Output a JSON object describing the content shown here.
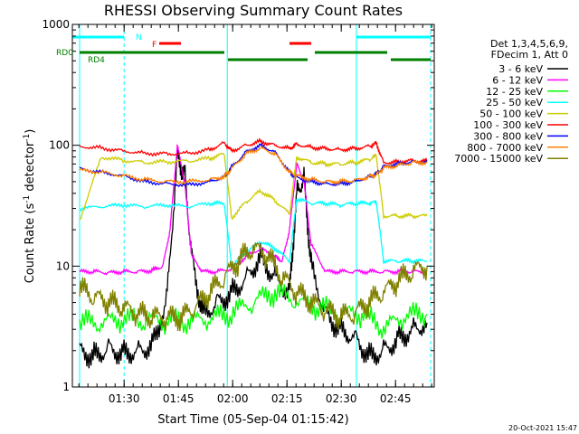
{
  "chart_data": {
    "type": "line",
    "title": "RHESSI Observing Summary Count Rates",
    "xlabel": "Start Time (05-Sep-04 01:15:42)",
    "ylabel": "Count Rate (s",
    "ylabel_sup": "-1",
    "ylabel_rest": " detector",
    "ylabel_end": ")",
    "yscale": "log",
    "ylim": [
      1,
      1000
    ],
    "xlim_minutes": [
      0,
      100
    ],
    "x_ticks": [
      {
        "label": "01:30",
        "minutes": 14.3
      },
      {
        "label": "01:45",
        "minutes": 29.3
      },
      {
        "label": "02:00",
        "minutes": 44.3
      },
      {
        "label": "02:15",
        "minutes": 59.3
      },
      {
        "label": "02:30",
        "minutes": 74.3
      },
      {
        "label": "02:45",
        "minutes": 89.3
      }
    ],
    "y_ticks": [
      {
        "label": "1",
        "value": 1
      },
      {
        "label": "10",
        "value": 10
      },
      {
        "label": "100",
        "value": 100
      },
      {
        "label": "1000",
        "value": 1000
      }
    ],
    "legend_header": [
      "Det 1,3,4,5,6,9,",
      "FDecim 1, Att 0"
    ],
    "series": [
      {
        "name": "3 - 6 keV",
        "color": "#000000",
        "x": [
          2,
          6,
          10,
          14,
          18,
          22,
          26,
          29,
          31,
          33,
          36,
          40,
          44,
          48,
          52,
          56,
          60,
          62,
          64,
          66,
          70,
          74,
          78,
          82,
          86,
          90,
          94,
          98
        ],
        "values": [
          2,
          1.8,
          2.1,
          1.9,
          2,
          2.2,
          5,
          80,
          60,
          12,
          4,
          5,
          6,
          8,
          12,
          8,
          6,
          40,
          55,
          10,
          4,
          3,
          2.6,
          1.8,
          2,
          2.5,
          3,
          3.4
        ]
      },
      {
        "name": "6 - 12 keV",
        "color": "#ff00ff",
        "x": [
          2,
          6,
          10,
          14,
          18,
          22,
          25,
          27,
          29,
          31,
          33,
          36,
          40,
          44,
          48,
          52,
          56,
          58,
          60,
          62,
          64,
          66,
          70,
          74,
          78,
          82,
          86,
          90,
          94,
          98
        ],
        "values": [
          9,
          9,
          8.8,
          9,
          9,
          9.2,
          10,
          20,
          100,
          50,
          12,
          9,
          9,
          9.5,
          12,
          14,
          12,
          11,
          20,
          70,
          50,
          15,
          9,
          9,
          9,
          9,
          9,
          9,
          9,
          9
        ]
      },
      {
        "name": "12 - 25 keV",
        "color": "#00ff00",
        "x": [
          2,
          8,
          14,
          20,
          26,
          32,
          38,
          44,
          50,
          56,
          62,
          68,
          74,
          80,
          86,
          92,
          98
        ],
        "values": [
          3.4,
          3.3,
          3.6,
          3.5,
          3.5,
          3.4,
          3.6,
          4,
          5,
          6,
          5,
          4.5,
          4,
          4,
          3,
          3.8,
          4
        ]
      },
      {
        "name": "25 - 50 keV",
        "color": "#00ffff",
        "x": [
          2,
          8,
          14,
          20,
          26,
          32,
          38,
          42,
          44,
          48,
          52,
          56,
          60,
          62,
          66,
          70,
          74,
          78,
          82,
          84,
          86,
          90,
          94,
          98
        ],
        "values": [
          30,
          31,
          32,
          31,
          32,
          31,
          33,
          33,
          10,
          13,
          16,
          14,
          11,
          36,
          33,
          33,
          32,
          33,
          33,
          34,
          11,
          11,
          11,
          11
        ]
      },
      {
        "name": "50 - 100 keV",
        "color": "#cccc00",
        "x": [
          2,
          8,
          14,
          20,
          26,
          32,
          38,
          42,
          44,
          48,
          52,
          56,
          60,
          62,
          66,
          70,
          74,
          78,
          82,
          84,
          86,
          90,
          94,
          98
        ],
        "values": [
          24,
          80,
          75,
          72,
          73,
          74,
          78,
          85,
          25,
          34,
          42,
          35,
          27,
          80,
          72,
          70,
          70,
          72,
          76,
          82,
          26,
          26,
          26,
          26
        ]
      },
      {
        "name": "100 - 300 keV",
        "color": "#ff0000",
        "x": [
          2,
          8,
          14,
          20,
          26,
          32,
          38,
          42,
          44,
          48,
          52,
          56,
          60,
          62,
          66,
          70,
          74,
          78,
          82,
          84,
          86,
          90,
          94,
          98
        ],
        "values": [
          98,
          95,
          90,
          86,
          85,
          86,
          92,
          105,
          90,
          100,
          108,
          100,
          94,
          102,
          96,
          94,
          92,
          94,
          98,
          104,
          72,
          73,
          75,
          74
        ]
      },
      {
        "name": "300 - 800 keV",
        "color": "#0000ff",
        "x": [
          2,
          8,
          14,
          20,
          26,
          32,
          38,
          42,
          44,
          48,
          52,
          56,
          60,
          62,
          66,
          70,
          74,
          78,
          82,
          84,
          86,
          90,
          94,
          98
        ],
        "values": [
          64,
          60,
          56,
          50,
          48,
          47,
          50,
          55,
          66,
          88,
          100,
          88,
          60,
          54,
          50,
          48,
          48,
          50,
          55,
          58,
          67,
          70,
          73,
          72
        ]
      },
      {
        "name": "800 - 7000 keV",
        "color": "#ff8000",
        "x": [
          2,
          8,
          14,
          20,
          26,
          32,
          38,
          42,
          44,
          48,
          52,
          56,
          60,
          62,
          66,
          70,
          74,
          78,
          82,
          84,
          86,
          90,
          94,
          98
        ],
        "values": [
          62,
          60,
          56,
          52,
          50,
          50,
          52,
          55,
          64,
          85,
          95,
          85,
          60,
          56,
          52,
          50,
          50,
          51,
          55,
          57,
          65,
          68,
          72,
          72
        ]
      },
      {
        "name": "7000 - 15000 keV",
        "color": "#808000",
        "x": [
          2,
          6,
          10,
          14,
          18,
          22,
          26,
          30,
          34,
          38,
          42,
          46,
          50,
          54,
          58,
          62,
          66,
          70,
          74,
          78,
          82,
          86,
          90,
          94,
          98
        ],
        "values": [
          6.5,
          5.5,
          5,
          4.5,
          4,
          3.8,
          3.7,
          3.7,
          4.5,
          6,
          8,
          11,
          14,
          12,
          8,
          6,
          5,
          4.2,
          3.8,
          4,
          5,
          6,
          7.5,
          9,
          10
        ]
      }
    ],
    "annotations": {
      "N_label": "N",
      "F_label": "F",
      "RD0_label": "RD0",
      "RD4_label": "RD4",
      "cyan_bars": [
        [
          0,
          14.3
        ],
        [
          78.5,
          99
        ]
      ],
      "red_bars": [
        [
          24,
          30
        ],
        [
          60,
          66
        ]
      ],
      "green_bars": [
        [
          2,
          42
        ],
        [
          43,
          65
        ],
        [
          67,
          87
        ],
        [
          88,
          99
        ]
      ],
      "cyan_dashed_lines": [
        14.3,
        78.5,
        99
      ],
      "cyan_solid_lines": [
        2,
        42.8,
        78.5
      ]
    },
    "footer_date": "20-Oct-2021 15:47"
  }
}
